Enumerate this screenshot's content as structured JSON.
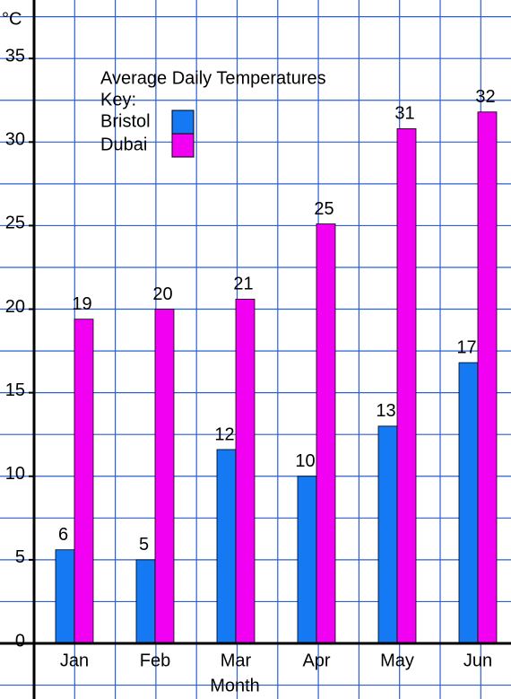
{
  "chart_data": {
    "type": "bar",
    "title": "Average Daily Temperatures",
    "legend_title": "Key:",
    "y_label": "°C",
    "x_label": "Month",
    "categories": [
      "Jan",
      "Feb",
      "Mar",
      "Apr",
      "May",
      "Jun"
    ],
    "series": [
      {
        "name": "Bristol",
        "color": "#1479f2",
        "values": [
          5.6,
          5,
          11.6,
          10,
          13,
          16.8
        ],
        "value_labels": [
          "6",
          "5",
          "12",
          "10",
          "13",
          "17"
        ]
      },
      {
        "name": "Dubai",
        "color": "#f200f2",
        "values": [
          19.4,
          20,
          20.6,
          25.1,
          30.8,
          31.8
        ],
        "value_labels": [
          "19",
          "20",
          "21",
          "25",
          "31",
          "32"
        ]
      }
    ],
    "ylim": [
      0,
      38.5
    ],
    "yticks": [
      0,
      5,
      10,
      15,
      20,
      25,
      30,
      35
    ],
    "grid": true
  }
}
